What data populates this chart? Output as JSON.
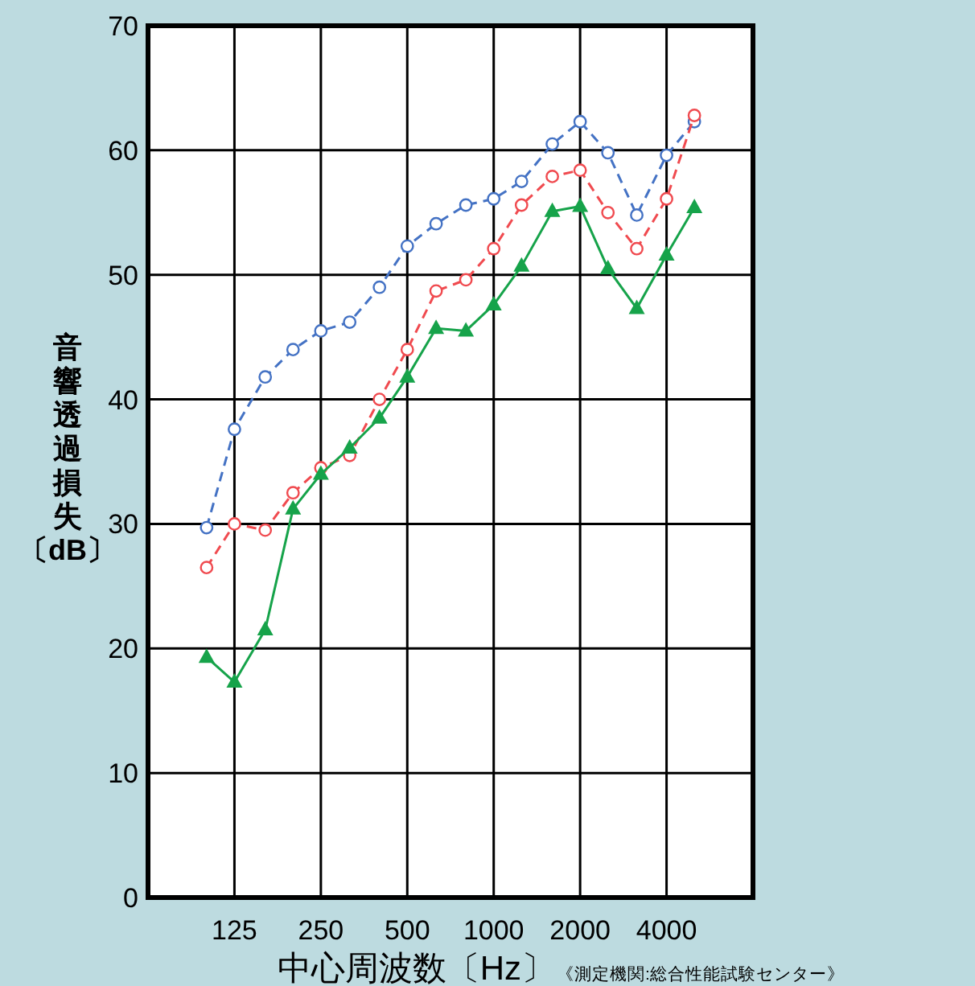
{
  "chart_data": {
    "type": "line",
    "xlabel": "中心周波数〔Hz〕",
    "ylabel": "音響透過損失〔dB〕",
    "annotations": [
      "《測定機関:総合性能試験センター》"
    ],
    "log": "x",
    "xlim": [
      62.5,
      8000
    ],
    "xticks": [
      125,
      250,
      500,
      1000,
      2000,
      4000
    ],
    "ylim": [
      0,
      70
    ],
    "yticks": [
      0,
      10,
      20,
      30,
      40,
      50,
      60,
      70
    ],
    "grid": true,
    "x": [
      100,
      125,
      160,
      200,
      250,
      315,
      400,
      500,
      630,
      800,
      1000,
      1250,
      1600,
      2000,
      2500,
      3150,
      4000,
      5000
    ],
    "series": [
      {
        "color": "#4472c4",
        "marker": "circle",
        "line_style": "dashed",
        "values": [
          29.7,
          37.6,
          41.8,
          44,
          45.5,
          46.2,
          49,
          52.3,
          54.1,
          55.6,
          56.1,
          57.5,
          60.5,
          62.3,
          59.8,
          54.8,
          59.6,
          62.3
        ]
      },
      {
        "color": "#f04a4f",
        "marker": "circle",
        "line_style": "dashed",
        "values": [
          26.5,
          30,
          29.5,
          32.5,
          34.5,
          35.5,
          40,
          44,
          48.7,
          49.6,
          52.1,
          55.6,
          57.9,
          58.4,
          55,
          52.1,
          56.1,
          62.8
        ]
      },
      {
        "color": "#16a34a",
        "marker": "triangle",
        "line_style": "solid",
        "values": [
          19.3,
          17.3,
          21.5,
          31.2,
          34,
          36.1,
          38.5,
          41.8,
          45.7,
          45.5,
          47.6,
          50.7,
          55.1,
          55.5,
          50.5,
          47.3,
          51.6,
          55.4
        ]
      }
    ]
  }
}
